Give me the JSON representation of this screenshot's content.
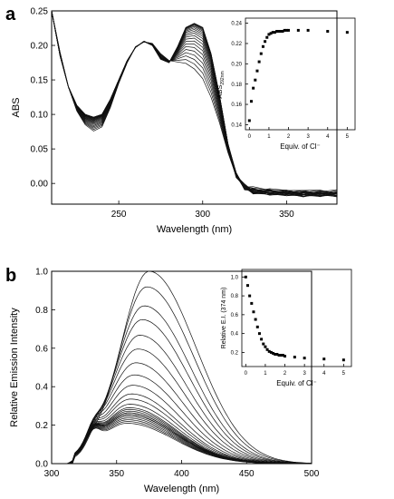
{
  "figure": {
    "panel_a_letter": "a",
    "panel_b_letter": "b"
  },
  "chart_data": [
    {
      "id": "a_main",
      "type": "line",
      "xlabel": "Wavelength (nm)",
      "ylabel": "ABS",
      "xlim": [
        210,
        380
      ],
      "ylim": [
        -0.03,
        0.25
      ],
      "xticks": [
        250,
        300,
        350
      ],
      "yticks": [
        0.0,
        0.05,
        0.1,
        0.15,
        0.2,
        0.25
      ],
      "ytick_labels": [
        "0.00",
        "0.05",
        "0.10",
        "0.15",
        "0.20",
        "0.25"
      ],
      "grid": false,
      "legend": "none",
      "series_count": 21,
      "series": [
        {
          "x": [
            210,
            215,
            220,
            225,
            230,
            235,
            240,
            245,
            250,
            255,
            260,
            265,
            270,
            275,
            280,
            285,
            290,
            295,
            300,
            305,
            310,
            315,
            320,
            325,
            330,
            340,
            350,
            360,
            370,
            380
          ],
          "values": [
            0.25,
            0.19,
            0.14,
            0.105,
            0.085,
            0.076,
            0.082,
            0.11,
            0.145,
            0.175,
            0.198,
            0.205,
            0.203,
            0.188,
            0.178,
            0.176,
            0.174,
            0.166,
            0.152,
            0.125,
            0.088,
            0.045,
            0.012,
            -0.004,
            -0.008,
            -0.01,
            -0.011,
            -0.012,
            -0.012,
            -0.012
          ]
        },
        {
          "x": [
            210,
            215,
            220,
            225,
            230,
            235,
            240,
            245,
            250,
            255,
            260,
            265,
            270,
            275,
            280,
            285,
            290,
            295,
            300,
            305,
            310,
            315,
            320,
            325,
            330,
            340,
            350,
            360,
            370,
            380
          ],
          "values": [
            0.25,
            0.185,
            0.14,
            0.113,
            0.1,
            0.096,
            0.1,
            0.122,
            0.15,
            0.178,
            0.197,
            0.206,
            0.2,
            0.18,
            0.175,
            0.198,
            0.226,
            0.232,
            0.226,
            0.188,
            0.128,
            0.058,
            0.012,
            -0.006,
            -0.012,
            -0.014,
            -0.015,
            -0.016,
            -0.016,
            -0.016
          ]
        }
      ]
    },
    {
      "id": "a_inset",
      "type": "scatter",
      "xlabel": "Equiv. of Cl⁻",
      "ylabel_main": "ABS",
      "ylabel_sub": "292nm",
      "xlim": [
        -0.2,
        5.4
      ],
      "ylim": [
        0.135,
        0.245
      ],
      "xticks": [
        0,
        1,
        2,
        3,
        4,
        5
      ],
      "yticks": [
        0.14,
        0.16,
        0.18,
        0.2,
        0.22,
        0.24
      ],
      "ytick_labels": [
        "0.14",
        "0.16",
        "0.18",
        "0.20",
        "0.22",
        "0.24"
      ],
      "x": [
        0.0,
        0.1,
        0.2,
        0.3,
        0.4,
        0.5,
        0.6,
        0.7,
        0.8,
        0.9,
        1.0,
        1.1,
        1.2,
        1.3,
        1.4,
        1.5,
        1.6,
        1.7,
        1.8,
        1.9,
        2.0,
        2.5,
        3.0,
        4.0,
        5.0
      ],
      "values": [
        0.144,
        0.163,
        0.176,
        0.184,
        0.193,
        0.202,
        0.21,
        0.217,
        0.222,
        0.226,
        0.229,
        0.23,
        0.231,
        0.231,
        0.232,
        0.232,
        0.232,
        0.232,
        0.233,
        0.233,
        0.233,
        0.233,
        0.233,
        0.232,
        0.231
      ]
    },
    {
      "id": "b_main",
      "type": "line",
      "xlabel": "Wavelength (nm)",
      "ylabel": "Relative Emission Intensity",
      "xlim": [
        300,
        500
      ],
      "ylim": [
        0.0,
        1.0
      ],
      "xticks": [
        300,
        350,
        400,
        450,
        500
      ],
      "yticks": [
        0.0,
        0.2,
        0.4,
        0.6,
        0.8,
        1.0
      ],
      "ytick_labels": [
        "0.0",
        "0.2",
        "0.4",
        "0.6",
        "0.8",
        "1.0"
      ],
      "grid": false,
      "legend": "none",
      "series_count": 25,
      "series": [
        {
          "peak_wavelength": 375,
          "peak_value": 1.0
        },
        {
          "peak_wavelength": 358,
          "peak_value": 0.21
        }
      ]
    },
    {
      "id": "b_inset",
      "type": "scatter",
      "xlabel": "Equiv. of Cl⁻",
      "ylabel": "Relative E.I. (374 nm)",
      "xlim": [
        -0.2,
        5.4
      ],
      "ylim": [
        0.05,
        1.08
      ],
      "xticks": [
        0,
        1,
        2,
        3,
        4,
        5
      ],
      "yticks": [
        0.2,
        0.4,
        0.6,
        0.8,
        1.0
      ],
      "ytick_labels": [
        "0.2",
        "0.4",
        "0.6",
        "0.8",
        "1.0"
      ],
      "x": [
        0.0,
        0.1,
        0.2,
        0.3,
        0.4,
        0.5,
        0.6,
        0.7,
        0.8,
        0.9,
        1.0,
        1.1,
        1.2,
        1.3,
        1.4,
        1.5,
        1.6,
        1.7,
        1.8,
        1.9,
        2.0,
        2.5,
        3.0,
        4.0,
        5.0
      ],
      "values": [
        1.0,
        0.91,
        0.8,
        0.72,
        0.63,
        0.55,
        0.47,
        0.4,
        0.34,
        0.29,
        0.26,
        0.23,
        0.21,
        0.2,
        0.19,
        0.18,
        0.18,
        0.17,
        0.17,
        0.17,
        0.16,
        0.15,
        0.14,
        0.13,
        0.12
      ]
    }
  ]
}
